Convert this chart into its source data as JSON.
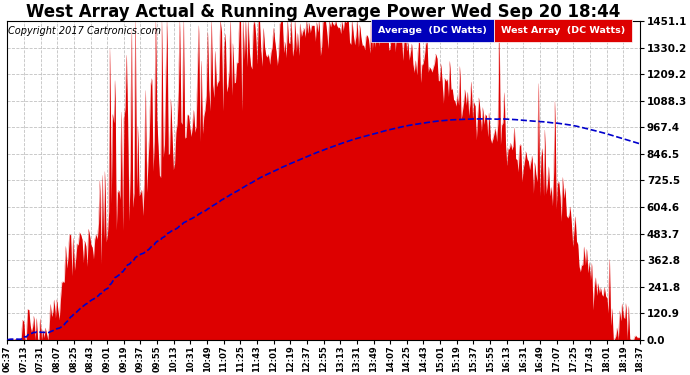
{
  "title": "West Array Actual & Running Average Power Wed Sep 20 18:44",
  "copyright": "Copyright 2017 Cartronics.com",
  "ylabel_right_ticks": [
    0.0,
    120.9,
    241.8,
    362.8,
    483.7,
    604.6,
    725.5,
    846.5,
    967.4,
    1088.3,
    1209.2,
    1330.2,
    1451.1
  ],
  "ymax": 1451.1,
  "ymin": 0.0,
  "bar_color": "#dd0000",
  "avg_color": "#0000cc",
  "background_color": "#ffffff",
  "grid_color": "#bbbbbb",
  "title_fontsize": 12,
  "copyright_fontsize": 7,
  "legend_avg_bg": "#0000bb",
  "legend_west_bg": "#dd0000",
  "x_tick_labels": [
    "06:37",
    "07:13",
    "07:31",
    "08:07",
    "08:25",
    "08:43",
    "09:01",
    "09:19",
    "09:37",
    "09:55",
    "10:13",
    "10:31",
    "10:49",
    "11:07",
    "11:25",
    "11:43",
    "12:01",
    "12:19",
    "12:37",
    "12:55",
    "13:13",
    "13:31",
    "13:49",
    "14:07",
    "14:25",
    "14:43",
    "15:01",
    "15:19",
    "15:37",
    "15:55",
    "16:13",
    "16:31",
    "16:49",
    "17:07",
    "17:25",
    "17:43",
    "18:01",
    "18:19",
    "18:37"
  ],
  "n_points": 500,
  "figwidth": 6.9,
  "figheight": 3.75,
  "dpi": 100
}
